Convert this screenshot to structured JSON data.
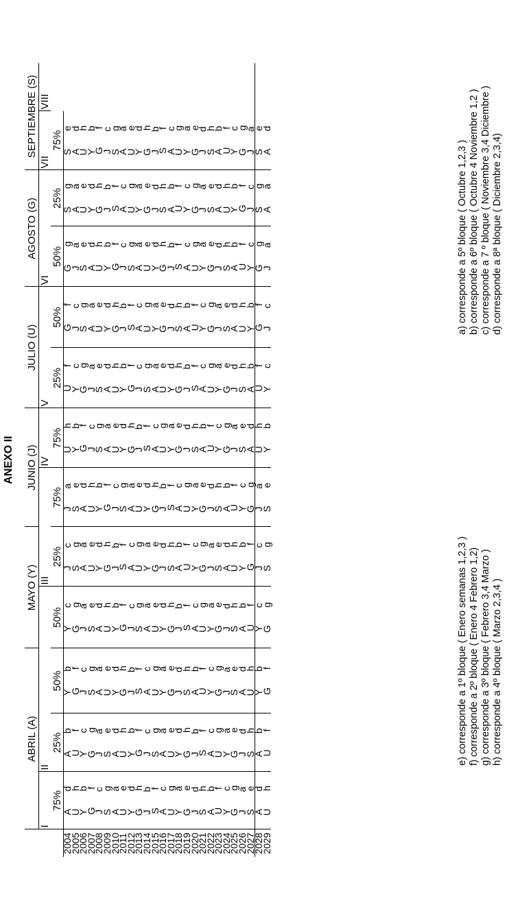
{
  "title": "ANEXO II",
  "months": [
    {
      "label": "ABRIL (A)",
      "span": 3
    },
    {
      "label": "MAYO (Y)",
      "span": 2
    },
    {
      "label": "JUNIO (J)",
      "span": 2
    },
    {
      "label": "JULIO (U)",
      "span": 2
    },
    {
      "label": "AGOSTO (G)",
      "span": 2
    },
    {
      "label": "SEPTIEMBRE (S)",
      "span": 2
    }
  ],
  "blocks": [
    {
      "label": "I",
      "span": 1
    },
    {
      "label": "II",
      "span": 3
    },
    {
      "label": "III",
      "span": 2
    },
    {
      "label": "IV",
      "span": 1
    },
    {
      "label": "V",
      "span": 2
    },
    {
      "label": "VI",
      "span": 2
    },
    {
      "label": "VII",
      "span": 1
    },
    {
      "label": "VIII",
      "span": 1
    }
  ],
  "percents": [
    "75%",
    "25%",
    "50%",
    "50%",
    "25%",
    "75%",
    "75%",
    "25%",
    "50%",
    "50%",
    "25%",
    "75%"
  ],
  "years": [
    "2004",
    "2005",
    "2006",
    "2007",
    "2008",
    "2009",
    "2010",
    "2011",
    "2012",
    "2013",
    "2014",
    "2015",
    "2016",
    "2017",
    "2018",
    "2019",
    "2020",
    "2021",
    "2022",
    "2023",
    "2024",
    "2025",
    "2026",
    "2027",
    "2028",
    "2029"
  ],
  "columns": [
    [
      "A d",
      "U h",
      "Y b",
      "G f",
      "J c",
      "S g",
      "A a",
      "U e",
      "Y d",
      "G h",
      "J b",
      "S f",
      "A c",
      "U g",
      "Y a",
      "G e",
      "J d",
      "S h",
      "A b",
      "U f",
      "Y c",
      "G g",
      "J a",
      "S e",
      "A d",
      "U h"
    ],
    [
      "A b",
      "U f",
      "Y c",
      "G g",
      "J a",
      "S e",
      "A d",
      "U h",
      "Y b",
      "G f",
      "J c",
      "S g",
      "A a",
      "U e",
      "Y d",
      "G h",
      "J b",
      "S f",
      "A c",
      "U g",
      "Y a",
      "G e",
      "J d",
      "S h",
      "A b",
      "U f"
    ],
    [
      "Y b",
      "G f",
      "J c",
      "S g",
      "A a",
      "U e",
      "Y d",
      "G h",
      "J b",
      "S f",
      "A c",
      "U g",
      "Y a",
      "G e",
      "J d",
      "S h",
      "A b",
      "U f",
      "Y c",
      "G g",
      "J a",
      "S e",
      "A d",
      "U h",
      "Y b",
      "G f"
    ],
    [
      "Y c",
      "G g",
      "J a",
      "S e",
      "A d",
      "U h",
      "Y b",
      "G f",
      "J c",
      "S g",
      "A a",
      "U e",
      "Y d",
      "G h",
      "J b",
      "S f",
      "A c",
      "U g",
      "Y a",
      "G e",
      "J d",
      "S h",
      "A b",
      "U f",
      "Y c",
      "G g"
    ],
    [
      "J c",
      "S g",
      "A a",
      "U e",
      "Y d",
      "G h",
      "J b",
      "S f",
      "A c",
      "U g",
      "Y a",
      "G e",
      "J d",
      "S h",
      "A b",
      "U f",
      "Y c",
      "G g",
      "J a",
      "S e",
      "A d",
      "U h",
      "Y b",
      "G f",
      "J c",
      "S g"
    ],
    [
      "J a",
      "S e",
      "A d",
      "U h",
      "Y b",
      "G f",
      "J c",
      "S g",
      "A a",
      "U e",
      "Y d",
      "G h",
      "J b",
      "S f",
      "A c",
      "U g",
      "Y a",
      "G e",
      "J d",
      "S h",
      "A b",
      "U f",
      "Y c",
      "G g",
      "J a",
      "S e"
    ],
    [
      "U h",
      "Y b",
      "G f",
      "J c",
      "S g",
      "A a",
      "U e",
      "Y d",
      "G h",
      "J b",
      "S f",
      "A c",
      "U g",
      "Y a",
      "G e",
      "J d",
      "S h",
      "A b",
      "U f",
      "Y c",
      "G g",
      "J a",
      "S e",
      "A d",
      "U h",
      "Y b"
    ],
    [
      "U f",
      "Y c",
      "G g",
      "J a",
      "S e",
      "A d",
      "U h",
      "Y b",
      "G f",
      "J c",
      "S g",
      "A a",
      "U e",
      "Y d",
      "G h",
      "J b",
      "S f",
      "A c",
      "U g",
      "Y a",
      "G e",
      "J d",
      "S h",
      "A b",
      "U f",
      "Y c"
    ],
    [
      "G f",
      "J c",
      "S g",
      "A a",
      "U e",
      "Y d",
      "G h",
      "J b",
      "S f",
      "A c",
      "U g",
      "Y a",
      "G e",
      "J d",
      "S h",
      "A b",
      "U f",
      "Y c",
      "G g",
      "J a",
      "S e",
      "A d",
      "U h",
      "Y b",
      "G f",
      "J c"
    ],
    [
      "G g",
      "J a",
      "S e",
      "A d",
      "U h",
      "Y b",
      "G f",
      "J c",
      "S g",
      "A a",
      "U e",
      "Y d",
      "G h",
      "J b",
      "S f",
      "A c",
      "U g",
      "Y a",
      "G e",
      "J d",
      "S h",
      "A b",
      "U f",
      "Y c",
      "G g",
      "J a"
    ],
    [
      "S g",
      "A a",
      "U e",
      "Y d",
      "G h",
      "J b",
      "S f",
      "A c",
      "U g",
      "Y a",
      "G e",
      "J d",
      "S h",
      "A b",
      "U f",
      "Y c",
      "G g",
      "J a",
      "S e",
      "A d",
      "U h",
      "Y b",
      "G f",
      "J c",
      "S g",
      "A a"
    ],
    [
      "S e",
      "A d",
      "U h",
      "Y b",
      "G f",
      "J c",
      "S g",
      "A a",
      "U e",
      "Y d",
      "G h",
      "J b",
      "S f",
      "A c",
      "U g",
      "Y a",
      "G e",
      "J d",
      "S h",
      "A b",
      "U f",
      "Y c",
      "G g",
      "J a",
      "S e",
      "A d"
    ]
  ],
  "notes_left": [
    "e) corresponde a 1º bloque ( Enero semanas 1,2,3 )",
    "f) corresponde a 2º bloque ( Enero 4 Febrero 1,2)",
    "g) corresponde a 3º bloque ( Febrero 3,4 Marzo )",
    "h) corresponde a 4º bloque ( Marzo 2,3,4 )"
  ],
  "notes_right": [
    "a) corresponde a 5º bloque ( Octubre 1,2,3 )",
    "b) corresponde a 6º bloque ( Octubre 4 Noviembre 1,2 )",
    "c) corresponde a 7 º bloque ( Noviembre 3,4 Diciembre )",
    "d) corresponde a 8ª bloque ( Diciembre 2,3,4)"
  ]
}
